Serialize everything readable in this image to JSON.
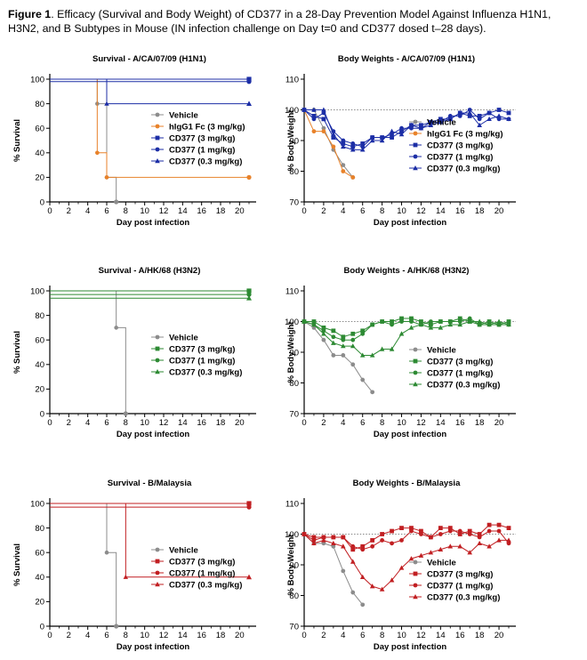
{
  "figure": {
    "label": "Figure 1",
    "caption": ". Efficacy (Survival and Body Weight) of CD377 in a 28-Day Prevention Model Against Influenza H1N1, H3N2, and B Subtypes in Mouse (IN infection challenge on Day t=0 and CD377 dosed t–28 days)."
  },
  "chart_data": [
    {
      "id": "survival-h1n1",
      "type": "line",
      "title": "Survival - A/CA/07/09 (H1N1)",
      "xlabel": "Day post infection",
      "ylabel": "% Survival",
      "xlim": [
        0,
        21
      ],
      "ylim": [
        0,
        100
      ],
      "xticks": [
        0,
        2,
        4,
        6,
        8,
        10,
        12,
        14,
        16,
        18,
        20
      ],
      "yticks": [
        0,
        20,
        40,
        60,
        80,
        100
      ],
      "step": true,
      "legend": "center-right",
      "series": [
        {
          "name": "Vehicle",
          "color": "#8c8c8c",
          "marker": "circle",
          "x": [
            0,
            5,
            5,
            6,
            6,
            7,
            7
          ],
          "y": [
            100,
            100,
            80,
            80,
            20,
            20,
            0
          ]
        },
        {
          "name": "hIgG1 Fc (3 mg/kg)",
          "color": "#e8822a",
          "marker": "circle",
          "x": [
            0,
            5,
            5,
            6,
            6,
            21
          ],
          "y": [
            100,
            100,
            40,
            40,
            20,
            20
          ]
        },
        {
          "name": "CD377 (3 mg/kg)",
          "color": "#1c2ea6",
          "marker": "square",
          "x": [
            0,
            21
          ],
          "y": [
            100,
            100
          ]
        },
        {
          "name": "CD377 (1 mg/kg)",
          "color": "#1c2ea6",
          "marker": "circle",
          "x": [
            0,
            21
          ],
          "y": [
            98,
            98
          ]
        },
        {
          "name": "CD377 (0.3 mg/kg)",
          "color": "#1c2ea6",
          "marker": "triangle",
          "x": [
            0,
            6,
            6,
            21
          ],
          "y": [
            100,
            100,
            80,
            80
          ]
        }
      ]
    },
    {
      "id": "bw-h1n1",
      "type": "line",
      "title": "Body Weights - A/CA/07/09 (H1N1)",
      "xlabel": "Day post infection",
      "ylabel": "% Body Weight",
      "xlim": [
        0,
        21
      ],
      "ylim": [
        70,
        110
      ],
      "xticks": [
        0,
        2,
        4,
        6,
        8,
        10,
        12,
        14,
        16,
        18,
        20
      ],
      "yticks": [
        70,
        80,
        90,
        100,
        110
      ],
      "reference": 100,
      "legend": "bottom-right",
      "series": [
        {
          "name": "Vehicle",
          "color": "#8c8c8c",
          "marker": "circle",
          "x": [
            0,
            1,
            2,
            3,
            4,
            5
          ],
          "y": [
            100,
            100,
            94,
            87,
            82,
            78
          ]
        },
        {
          "name": "hIgG1 Fc (3 mg/kg)",
          "color": "#e8822a",
          "marker": "circle",
          "x": [
            0,
            1,
            2,
            3,
            4,
            5
          ],
          "y": [
            100,
            93,
            93,
            88,
            80,
            78
          ]
        },
        {
          "name": "CD377 (3 mg/kg)",
          "color": "#1c2ea6",
          "marker": "square",
          "x": [
            0,
            1,
            2,
            3,
            4,
            5,
            6,
            7,
            8,
            9,
            10,
            11,
            12,
            13,
            14,
            15,
            16,
            17,
            18,
            19,
            20,
            21
          ],
          "y": [
            100,
            98,
            97,
            91,
            89,
            88,
            89,
            91,
            91,
            91,
            93,
            95,
            95,
            96,
            97,
            97,
            99,
            98,
            98,
            99,
            100,
            99
          ]
        },
        {
          "name": "CD377 (1 mg/kg)",
          "color": "#1c2ea6",
          "marker": "circle",
          "x": [
            0,
            1,
            2,
            3,
            4,
            5,
            6,
            7,
            8,
            9,
            10,
            11,
            12,
            13,
            14,
            15,
            16,
            17,
            18,
            19,
            20,
            21
          ],
          "y": [
            100,
            97,
            99,
            93,
            90,
            89,
            88,
            91,
            91,
            92,
            94,
            94,
            94,
            96,
            96,
            98,
            98,
            100,
            97,
            99,
            97,
            97
          ]
        },
        {
          "name": "CD377 (0.3 mg/kg)",
          "color": "#1c2ea6",
          "marker": "triangle",
          "x": [
            0,
            1,
            2,
            3,
            4,
            5,
            6,
            7,
            8,
            9,
            10,
            11,
            12,
            13,
            14,
            15,
            16,
            17,
            18,
            19,
            20,
            21
          ],
          "y": [
            100,
            100,
            100,
            92,
            88,
            87,
            87,
            90,
            90,
            93,
            92,
            95,
            94,
            95,
            96,
            97,
            99,
            99,
            95,
            97,
            98,
            97
          ]
        }
      ]
    },
    {
      "id": "survival-h3n2",
      "type": "line",
      "title": "Survival - A/HK/68 (H3N2)",
      "xlabel": "Day post infection",
      "ylabel": "% Survival",
      "xlim": [
        0,
        21
      ],
      "ylim": [
        0,
        100
      ],
      "xticks": [
        0,
        2,
        4,
        6,
        8,
        10,
        12,
        14,
        16,
        18,
        20
      ],
      "yticks": [
        0,
        20,
        40,
        60,
        80,
        100
      ],
      "step": true,
      "legend": "center-right",
      "series": [
        {
          "name": "Vehicle",
          "color": "#8c8c8c",
          "marker": "circle",
          "x": [
            0,
            7,
            7,
            8,
            8
          ],
          "y": [
            100,
            100,
            70,
            70,
            0
          ]
        },
        {
          "name": "CD377 (3 mg/kg)",
          "color": "#2d8a33",
          "marker": "square",
          "x": [
            0,
            21
          ],
          "y": [
            100,
            100
          ]
        },
        {
          "name": "CD377 (1 mg/kg)",
          "color": "#2d8a33",
          "marker": "circle",
          "x": [
            0,
            21
          ],
          "y": [
            97,
            97
          ]
        },
        {
          "name": "CD377 (0.3 mg/kg)",
          "color": "#2d8a33",
          "marker": "triangle",
          "x": [
            0,
            21
          ],
          "y": [
            94,
            94
          ]
        }
      ]
    },
    {
      "id": "bw-h3n2",
      "type": "line",
      "title": "Body Weights - A/HK/68 (H3N2)",
      "xlabel": "Day post infection",
      "ylabel": "% Body Weight",
      "xlim": [
        0,
        21
      ],
      "ylim": [
        70,
        110
      ],
      "xticks": [
        0,
        2,
        4,
        6,
        8,
        10,
        12,
        14,
        16,
        18,
        20
      ],
      "yticks": [
        70,
        80,
        90,
        100,
        110
      ],
      "reference": 100,
      "legend": "bottom-right",
      "series": [
        {
          "name": "Vehicle",
          "color": "#8c8c8c",
          "marker": "circle",
          "x": [
            0,
            1,
            2,
            3,
            4,
            5,
            6,
            7
          ],
          "y": [
            100,
            98,
            94,
            89,
            89,
            86,
            81,
            77
          ]
        },
        {
          "name": "CD377 (3 mg/kg)",
          "color": "#2d8a33",
          "marker": "square",
          "x": [
            0,
            1,
            2,
            3,
            4,
            5,
            6,
            7,
            8,
            9,
            10,
            11,
            12,
            13,
            14,
            15,
            16,
            17,
            18,
            19,
            20,
            21
          ],
          "y": [
            100,
            100,
            98,
            97,
            95,
            96,
            97,
            99,
            100,
            100,
            101,
            101,
            100,
            99,
            100,
            100,
            101,
            100,
            99,
            100,
            99,
            100
          ]
        },
        {
          "name": "CD377 (1 mg/kg)",
          "color": "#2d8a33",
          "marker": "circle",
          "x": [
            0,
            1,
            2,
            3,
            4,
            5,
            6,
            7,
            8,
            9,
            10,
            11,
            12,
            13,
            14,
            15,
            16,
            17,
            18,
            19,
            20,
            21
          ],
          "y": [
            100,
            99,
            97,
            95,
            94,
            94,
            96,
            99,
            100,
            99,
            100,
            100,
            99,
            100,
            100,
            100,
            100,
            101,
            99,
            99,
            99,
            99
          ]
        },
        {
          "name": "CD377 (0.3 mg/kg)",
          "color": "#2d8a33",
          "marker": "triangle",
          "x": [
            0,
            1,
            2,
            3,
            4,
            5,
            6,
            7,
            8,
            9,
            10,
            11,
            12,
            13,
            14,
            15,
            16,
            17,
            18,
            19,
            20,
            21
          ],
          "y": [
            100,
            99,
            96,
            93,
            92,
            92,
            89,
            89,
            91,
            91,
            96,
            98,
            99,
            98,
            98,
            99,
            99,
            100,
            100,
            99,
            100,
            99
          ]
        }
      ]
    },
    {
      "id": "survival-b",
      "type": "line",
      "title": "Survival - B/Malaysia",
      "xlabel": "Day post infection",
      "ylabel": "% Survival",
      "xlim": [
        0,
        21
      ],
      "ylim": [
        0,
        100
      ],
      "xticks": [
        0,
        2,
        4,
        6,
        8,
        10,
        12,
        14,
        16,
        18,
        20
      ],
      "yticks": [
        0,
        20,
        40,
        60,
        80,
        100
      ],
      "step": true,
      "legend": "center-right",
      "series": [
        {
          "name": "Vehicle",
          "color": "#8c8c8c",
          "marker": "circle",
          "x": [
            0,
            6,
            6,
            7,
            7
          ],
          "y": [
            100,
            100,
            60,
            60,
            0
          ]
        },
        {
          "name": "CD377 (3 mg/kg)",
          "color": "#c11f22",
          "marker": "square",
          "x": [
            0,
            21
          ],
          "y": [
            100,
            100
          ]
        },
        {
          "name": "CD377 (1 mg/kg)",
          "color": "#c11f22",
          "marker": "circle",
          "x": [
            0,
            21
          ],
          "y": [
            97,
            97
          ]
        },
        {
          "name": "CD377 (0.3 mg/kg)",
          "color": "#c11f22",
          "marker": "triangle",
          "x": [
            0,
            8,
            8,
            21
          ],
          "y": [
            100,
            100,
            40,
            40
          ]
        }
      ]
    },
    {
      "id": "bw-b",
      "type": "line",
      "title": "Body Weights - B/Malaysia",
      "xlabel": "Day post infection",
      "ylabel": "% Body Weight",
      "xlim": [
        0,
        21
      ],
      "ylim": [
        70,
        110
      ],
      "xticks": [
        0,
        2,
        4,
        6,
        8,
        10,
        12,
        14,
        16,
        18,
        20
      ],
      "yticks": [
        70,
        80,
        90,
        100,
        110
      ],
      "reference": 100,
      "legend": "bottom-right",
      "series": [
        {
          "name": "Vehicle",
          "color": "#8c8c8c",
          "marker": "circle",
          "x": [
            0,
            1,
            2,
            3,
            4,
            5,
            6
          ],
          "y": [
            100,
            97,
            97,
            96,
            88,
            81,
            77
          ]
        },
        {
          "name": "CD377 (3 mg/kg)",
          "color": "#c11f22",
          "marker": "square",
          "x": [
            0,
            1,
            2,
            3,
            4,
            5,
            6,
            7,
            8,
            9,
            10,
            11,
            12,
            13,
            14,
            15,
            16,
            17,
            18,
            19,
            20,
            21
          ],
          "y": [
            100,
            99,
            99,
            99,
            99,
            95,
            96,
            98,
            100,
            101,
            102,
            102,
            101,
            99,
            102,
            102,
            100,
            101,
            100,
            103,
            103,
            102
          ]
        },
        {
          "name": "CD377 (1 mg/kg)",
          "color": "#c11f22",
          "marker": "circle",
          "x": [
            0,
            1,
            2,
            3,
            4,
            5,
            6,
            7,
            8,
            9,
            10,
            11,
            12,
            13,
            14,
            15,
            16,
            17,
            18,
            19,
            20,
            21
          ],
          "y": [
            100,
            98,
            99,
            99,
            99,
            96,
            95,
            96,
            98,
            97,
            98,
            101,
            100,
            99,
            100,
            101,
            101,
            100,
            99,
            101,
            101,
            97
          ]
        },
        {
          "name": "CD377 (0.3 mg/kg)",
          "color": "#c11f22",
          "marker": "triangle",
          "x": [
            0,
            1,
            2,
            3,
            4,
            5,
            6,
            7,
            8,
            9,
            10,
            11,
            12,
            13,
            14,
            15,
            16,
            17,
            18,
            19,
            20,
            21
          ],
          "y": [
            100,
            97,
            98,
            97,
            96,
            91,
            86,
            83,
            82,
            85,
            89,
            92,
            93,
            94,
            95,
            96,
            96,
            94,
            97,
            96,
            98,
            98
          ]
        }
      ]
    }
  ]
}
